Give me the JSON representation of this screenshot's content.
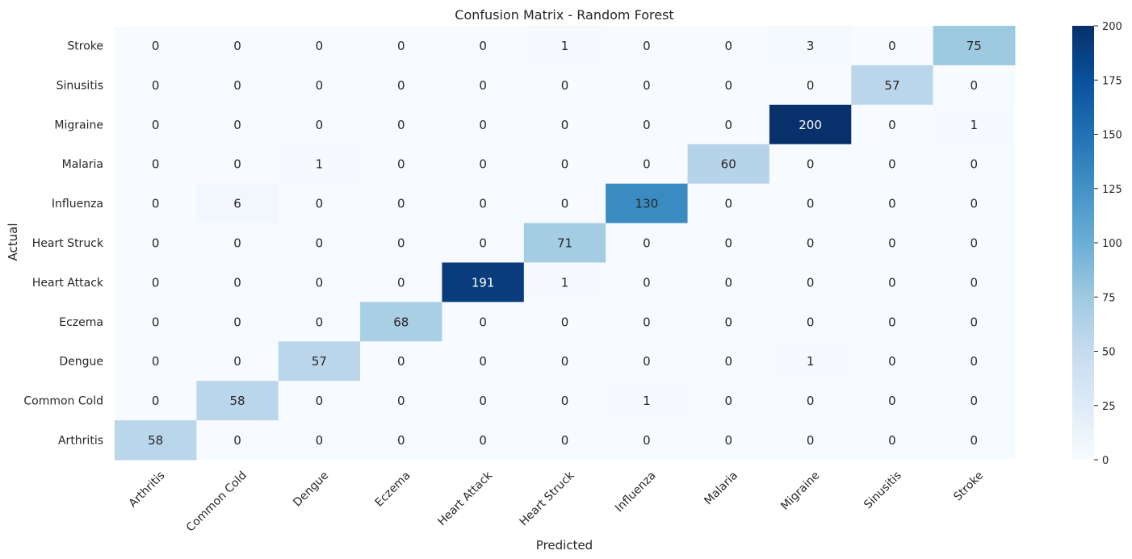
{
  "chart_data": {
    "type": "heatmap",
    "title": "Confusion Matrix - Random Forest",
    "xlabel": "Predicted",
    "ylabel": "Actual",
    "x_categories": [
      "Arthritis",
      "Common Cold",
      "Dengue",
      "Eczema",
      "Heart Attack",
      "Heart Struck",
      "Influenza",
      "Malaria",
      "Migraine",
      "Sinusitis",
      "Stroke"
    ],
    "y_categories": [
      "Stroke",
      "Sinusitis",
      "Migraine",
      "Malaria",
      "Influenza",
      "Heart Struck",
      "Heart Attack",
      "Eczema",
      "Dengue",
      "Common Cold",
      "Arthritis"
    ],
    "values": [
      [
        0,
        0,
        0,
        0,
        0,
        1,
        0,
        0,
        3,
        0,
        75
      ],
      [
        0,
        0,
        0,
        0,
        0,
        0,
        0,
        0,
        0,
        57,
        0
      ],
      [
        0,
        0,
        0,
        0,
        0,
        0,
        0,
        0,
        200,
        0,
        1
      ],
      [
        0,
        0,
        1,
        0,
        0,
        0,
        0,
        60,
        0,
        0,
        0
      ],
      [
        0,
        6,
        0,
        0,
        0,
        0,
        130,
        0,
        0,
        0,
        0
      ],
      [
        0,
        0,
        0,
        0,
        0,
        71,
        0,
        0,
        0,
        0,
        0
      ],
      [
        0,
        0,
        0,
        0,
        191,
        1,
        0,
        0,
        0,
        0,
        0
      ],
      [
        0,
        0,
        0,
        68,
        0,
        0,
        0,
        0,
        0,
        0,
        0
      ],
      [
        0,
        0,
        57,
        0,
        0,
        0,
        0,
        0,
        1,
        0,
        0
      ],
      [
        0,
        58,
        0,
        0,
        0,
        0,
        1,
        0,
        0,
        0,
        0
      ],
      [
        58,
        0,
        0,
        0,
        0,
        0,
        0,
        0,
        0,
        0,
        0
      ]
    ],
    "colorbar": {
      "range": [
        0,
        200
      ],
      "ticks": [
        "0",
        "25",
        "50",
        "75",
        "100",
        "125",
        "150",
        "175",
        "200"
      ],
      "colormap": "Blues"
    },
    "grid": false
  }
}
